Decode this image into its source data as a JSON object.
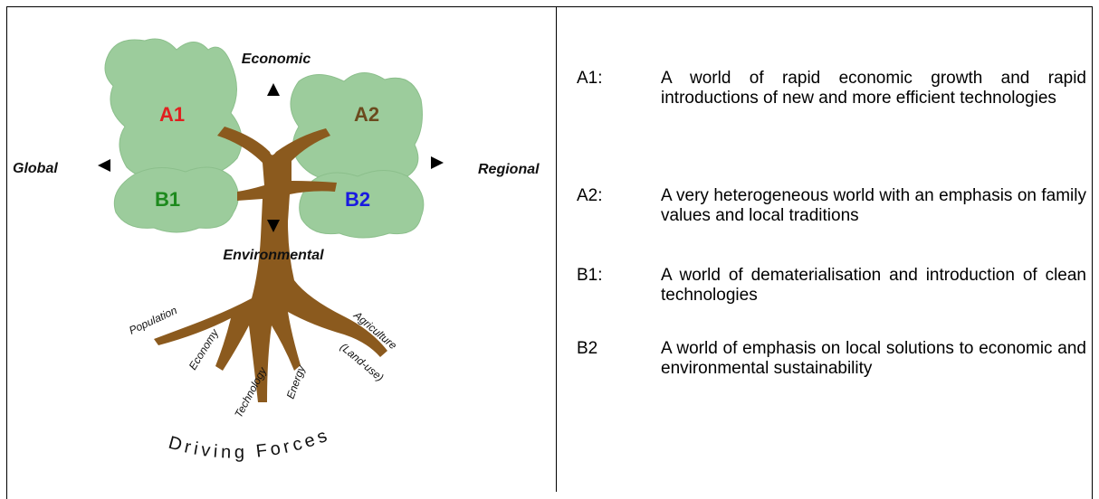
{
  "diagram": {
    "axes": {
      "up": "Economic",
      "left": "Global",
      "right": "Regional",
      "down": "Environmental"
    },
    "scenarios": {
      "a1": "A1",
      "a2": "A2",
      "b1": "B1",
      "b2": "B2"
    },
    "roots": [
      "Population",
      "Economy",
      "Technology",
      "Energy",
      "Agriculture",
      "(Land-use)"
    ],
    "caption": "Driving Forces"
  },
  "legend": [
    {
      "key": "A1:",
      "text": "A world of rapid economic growth and rapid introductions of new and more efficient technologies"
    },
    {
      "key": "A2:",
      "text": "A very heterogeneous world with an emphasis on family values and local traditions"
    },
    {
      "key": "B1:",
      "text": "A world of dematerialisation and introduction of clean technologies"
    },
    {
      "key": "B2",
      "text": "A world of emphasis on local solutions to economic and environmental sustainability"
    }
  ]
}
